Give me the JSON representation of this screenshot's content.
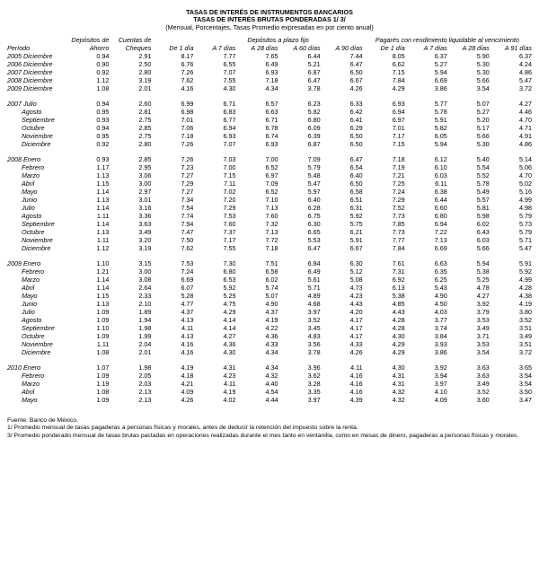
{
  "titles": {
    "t1": "TASAS DE INTERÉS DE INSTRUMENTOS BANCARIOS",
    "t2": "TASAS DE INTERÉS BRUTAS PONDERADAS 1/ 3/",
    "t3": "(Mensual, Porcentajes, Tasas Promedio expresadas en por ciento anual)"
  },
  "header": {
    "period": "Período",
    "dep_ahorro_1": "Depósitos de",
    "dep_ahorro_2": "Ahorro",
    "cuentas_1": "Cuentas de",
    "cuentas_2": "Cheques",
    "plazo_group": "Depósitos a plazo fijo",
    "pagare_group": "Pagarés con rendimiento liquidable al vencimiento",
    "d1": "De 1 día",
    "d7": "A 7 días",
    "d28": "A 28 días",
    "d60": "A 60 días",
    "d90": "A 90 días",
    "p1": "De 1 día",
    "p7": "A 7 días",
    "p28": "A 28 días",
    "p91": "A 91 días"
  },
  "sections": [
    {
      "rows": [
        {
          "l": "2005 Diciembre",
          "v": [
            "0.94",
            "2.91",
            "8.17",
            "7.77",
            "7.65",
            "6.44",
            "7.44",
            "8.05",
            "6.37",
            "5.90",
            "6.37"
          ]
        },
        {
          "l": "2006 Diciembre",
          "v": [
            "0.90",
            "2.50",
            "6.76",
            "6.55",
            "6.49",
            "5.21",
            "6.47",
            "6.62",
            "5.27",
            "5.30",
            "4.24"
          ]
        },
        {
          "l": "2007 Diciembre",
          "v": [
            "0.92",
            "2.80",
            "7.26",
            "7.07",
            "6.93",
            "6.87",
            "6.50",
            "7.15",
            "5.94",
            "5.30",
            "4.86"
          ]
        },
        {
          "l": "2008 Diciembre",
          "v": [
            "1.12",
            "3.19",
            "7.62",
            "7.55",
            "7.18",
            "6.47",
            "6.67",
            "7.84",
            "6.69",
            "5.66",
            "5.47"
          ]
        },
        {
          "l": "2009 Diciembre",
          "v": [
            "1.08",
            "2.01",
            "4.16",
            "4.30",
            "4.34",
            "3.78",
            "4.26",
            "4.29",
            "3.86",
            "3.54",
            "3.72"
          ]
        }
      ]
    },
    {
      "rows": [
        {
          "l": "2007 Julio",
          "v": [
            "0.94",
            "2.60",
            "6.99",
            "6.71",
            "6.57",
            "6.23",
            "6.33",
            "6.93",
            "5.77",
            "5.07",
            "4.27"
          ]
        },
        {
          "l": "        Agosto",
          "v": [
            "0.95",
            "2.81",
            "6.98",
            "6.83",
            "6.63",
            "5.82",
            "6.42",
            "6.94",
            "5.78",
            "5.27",
            "4.46"
          ]
        },
        {
          "l": "        Septiembre",
          "v": [
            "0.93",
            "2.75",
            "7.01",
            "6.77",
            "6.71",
            "6.80",
            "6.41",
            "6.97",
            "5.91",
            "5.20",
            "4.70"
          ]
        },
        {
          "l": "        Octubre",
          "v": [
            "0.94",
            "2.85",
            "7.06",
            "6.94",
            "6.78",
            "6.09",
            "6.29",
            "7.01",
            "5.82",
            "5.17",
            "4.71"
          ]
        },
        {
          "l": "        Noviembre",
          "v": [
            "0.95",
            "2.75",
            "7.18",
            "6.93",
            "6.74",
            "6.39",
            "6.50",
            "7.17",
            "6.05",
            "5.66",
            "4.91"
          ]
        },
        {
          "l": "        Diciembre",
          "v": [
            "0.92",
            "2.80",
            "7.26",
            "7.07",
            "6.93",
            "6.87",
            "6.50",
            "7.15",
            "5.94",
            "5.30",
            "4.86"
          ]
        }
      ]
    },
    {
      "rows": [
        {
          "l": "2008 Enero",
          "v": [
            "0.93",
            "2.85",
            "7.26",
            "7.03",
            "7.00",
            "7.09",
            "6.47",
            "7.18",
            "6.12",
            "5.40",
            "5.14"
          ]
        },
        {
          "l": "        Febrero",
          "v": [
            "1.17",
            "2.95",
            "7.23",
            "7.00",
            "6.52",
            "5.79",
            "6.54",
            "7.19",
            "6.10",
            "5.54",
            "5.06"
          ]
        },
        {
          "l": "        Marzo",
          "v": [
            "1.13",
            "3.06",
            "7.27",
            "7.15",
            "6.97",
            "5.48",
            "6.40",
            "7.21",
            "6.03",
            "5.52",
            "4.70"
          ]
        },
        {
          "l": "        Abril",
          "v": [
            "1.15",
            "3.00",
            "7.29",
            "7.11",
            "7.09",
            "5.47",
            "6.50",
            "7.25",
            "6.11",
            "5.78",
            "5.02"
          ]
        },
        {
          "l": "        Mayo",
          "v": [
            "1.14",
            "2.97",
            "7.27",
            "7.02",
            "6.52",
            "5.97",
            "6.58",
            "7.24",
            "6.38",
            "5.49",
            "5.16"
          ]
        },
        {
          "l": "        Junio",
          "v": [
            "1.13",
            "3.01",
            "7.34",
            "7.20",
            "7.10",
            "6.40",
            "6.51",
            "7.29",
            "6.44",
            "5.57",
            "4.99"
          ]
        },
        {
          "l": "        Julio",
          "v": [
            "1.14",
            "3.16",
            "7.54",
            "7.29",
            "7.13",
            "6.28",
            "6.31",
            "7.52",
            "6.60",
            "5.81",
            "4.98"
          ]
        },
        {
          "l": "        Agosto",
          "v": [
            "1.11",
            "3.36",
            "7.74",
            "7.53",
            "7.60",
            "6.75",
            "5.92",
            "7.73",
            "6.80",
            "5.98",
            "5.79"
          ]
        },
        {
          "l": "        Septiembre",
          "v": [
            "1.14",
            "3.63",
            "7.94",
            "7.60",
            "7.32",
            "6.30",
            "5.75",
            "7.85",
            "6.94",
            "6.02",
            "5.73"
          ]
        },
        {
          "l": "        Octubre",
          "v": [
            "1.13",
            "3.49",
            "7.47",
            "7.37",
            "7.13",
            "6.65",
            "6.21",
            "7.73",
            "7.22",
            "6.43",
            "5.79"
          ]
        },
        {
          "l": "        Noviembre",
          "v": [
            "1.11",
            "3.20",
            "7.50",
            "7.17",
            "7.72",
            "5.53",
            "5.91",
            "7.77",
            "7.13",
            "6.03",
            "5.71"
          ]
        },
        {
          "l": "        Diciembre",
          "v": [
            "1.12",
            "3.19",
            "7.62",
            "7.55",
            "7.18",
            "6.47",
            "6.67",
            "7.84",
            "6.69",
            "5.66",
            "5.47"
          ]
        }
      ]
    },
    {
      "rows": [
        {
          "l": "2009 Enero",
          "v": [
            "1.10",
            "3.15",
            "7.53",
            "7.30",
            "7.51",
            "6.84",
            "6.30",
            "7.61",
            "6.63",
            "5.94",
            "5.91"
          ]
        },
        {
          "l": "        Febrero",
          "v": [
            "1.21",
            "3.00",
            "7.24",
            "6.80",
            "6.58",
            "6.49",
            "5.12",
            "7.31",
            "6.35",
            "5.38",
            "5.92"
          ]
        },
        {
          "l": "        Marzo",
          "v": [
            "1.14",
            "3.08",
            "6.69",
            "6.53",
            "6.02",
            "5.61",
            "5.08",
            "6.92",
            "6.25",
            "5.25",
            "4.99"
          ]
        },
        {
          "l": "        Abril",
          "v": [
            "1.14",
            "2.64",
            "6.07",
            "5.92",
            "5.74",
            "5.71",
            "4.73",
            "6.13",
            "5.43",
            "4.78",
            "4.28"
          ]
        },
        {
          "l": "        Mayo",
          "v": [
            "1.15",
            "2.33",
            "5.28",
            "5.29",
            "5.07",
            "4.89",
            "4.23",
            "5.38",
            "4.90",
            "4.27",
            "4.38"
          ]
        },
        {
          "l": "        Junio",
          "v": [
            "1.13",
            "2.10",
            "4.77",
            "4.75",
            "4.90",
            "4.68",
            "4.43",
            "4.85",
            "4.50",
            "3.92",
            "4.19"
          ]
        },
        {
          "l": "        Julio",
          "v": [
            "1.09",
            "1.89",
            "4.37",
            "4.29",
            "4.37",
            "3.97",
            "4.20",
            "4.43",
            "4.03",
            "3.79",
            "3.80"
          ]
        },
        {
          "l": "        Agosto",
          "v": [
            "1.09",
            "1.94",
            "4.13",
            "4.14",
            "4.19",
            "3.52",
            "4.17",
            "4.28",
            "3.77",
            "3.53",
            "3.52"
          ]
        },
        {
          "l": "        Septiembre",
          "v": [
            "1.10",
            "1.98",
            "4.11",
            "4.14",
            "4.22",
            "3.45",
            "4.17",
            "4.28",
            "3.74",
            "3.49",
            "3.51"
          ]
        },
        {
          "l": "        Octubre",
          "v": [
            "1.09",
            "1.99",
            "4.13",
            "4.27",
            "4.36",
            "4.83",
            "4.17",
            "4.30",
            "3.84",
            "3.71",
            "3.49"
          ]
        },
        {
          "l": "        Noviembre",
          "v": [
            "1.11",
            "2.04",
            "4.16",
            "4.36",
            "4.33",
            "3.56",
            "4.33",
            "4.29",
            "3.93",
            "3.53",
            "3.51"
          ]
        },
        {
          "l": "        Diciembre",
          "v": [
            "1.08",
            "2.01",
            "4.16",
            "4.30",
            "4.34",
            "3.78",
            "4.26",
            "4.29",
            "3.86",
            "3.54",
            "3.72"
          ]
        }
      ]
    },
    {
      "rows": [
        {
          "l": "2010 Enero",
          "v": [
            "1.07",
            "1.98",
            "4.19",
            "4.31",
            "4.34",
            "3.96",
            "4.11",
            "4.30",
            "3.92",
            "3.63",
            "3.65"
          ]
        },
        {
          "l": "        Febrero",
          "v": [
            "1.09",
            "2.05",
            "4.18",
            "4.23",
            "4.32",
            "3.62",
            "4.16",
            "4.31",
            "3.94",
            "3.63",
            "3.54"
          ]
        },
        {
          "l": "        Marzo",
          "v": [
            "1.19",
            "2.03",
            "4.21",
            "4.11",
            "4.40",
            "3.28",
            "4.16",
            "4.31",
            "3.97",
            "3.49",
            "3.54"
          ]
        },
        {
          "l": "        Abril",
          "v": [
            "1.08",
            "2.13",
            "4.09",
            "4.19",
            "4.54",
            "3.35",
            "4.16",
            "4.32",
            "4.10",
            "3.52",
            "3.50"
          ]
        },
        {
          "l": "        Mayo",
          "v": [
            "1.09",
            "2.13",
            "4.26",
            "4.02",
            "4.44",
            "3.97",
            "4.39",
            "4.32",
            "4.09",
            "3.60",
            "3.47"
          ]
        }
      ]
    }
  ],
  "footnotes": {
    "f1": "Fuente: Banco de México.",
    "f2": "1/ Promedio mensual de tasas pagaderas a personas físicas y morales, antes de deducir la retención del impuesto sobre la renta.",
    "f3": "3/ Promedio ponderado mensual de tasas brutas pactadas en operaciones realizadas durante el mes tanto en ventanilla, como en mesas de dinero, pagaderas a personas físicas y morales."
  }
}
